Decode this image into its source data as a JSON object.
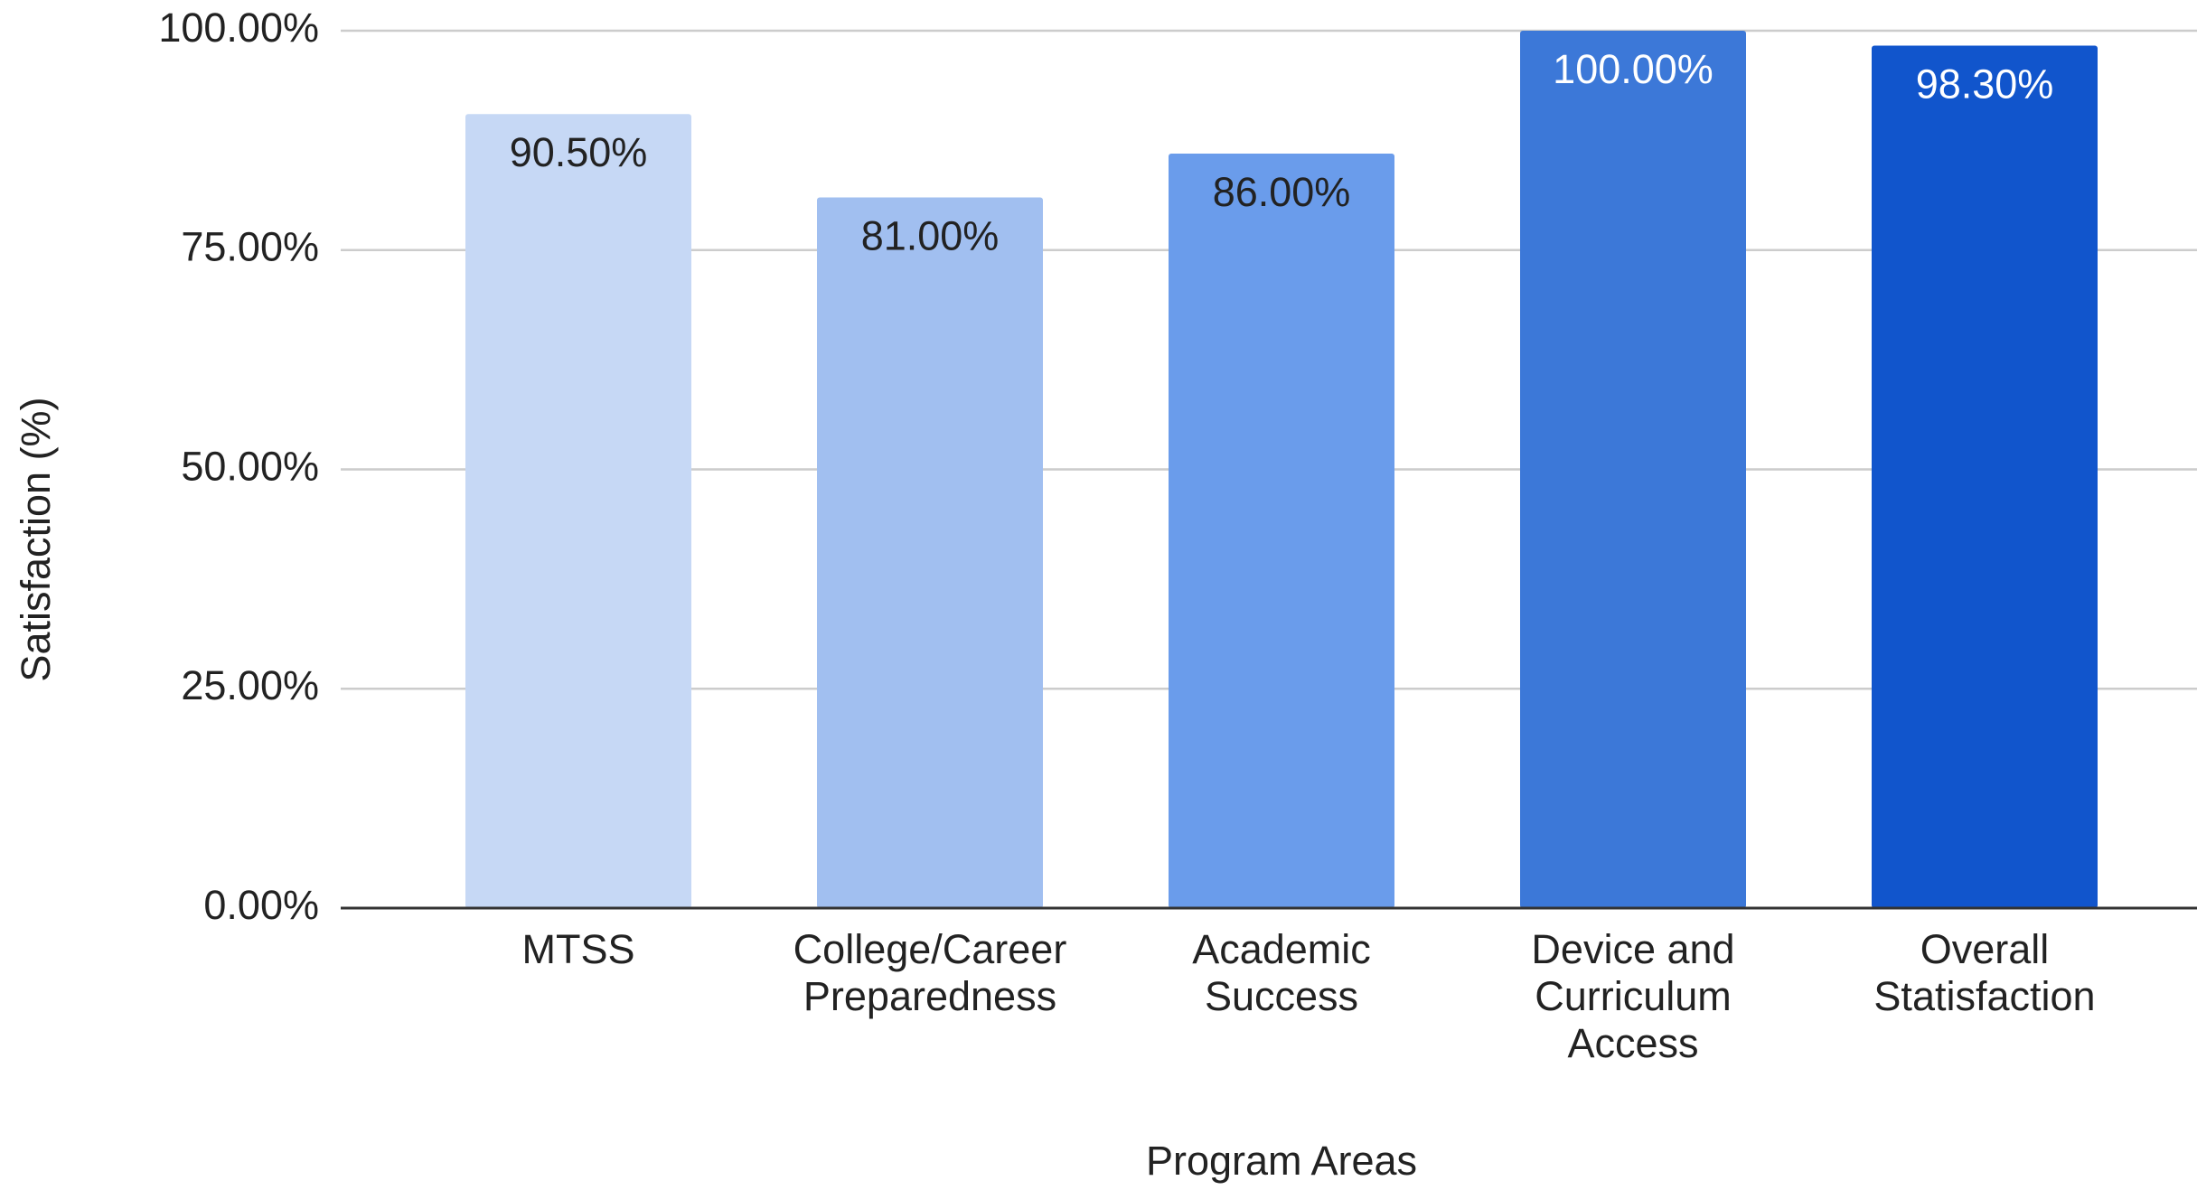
{
  "chart_data": {
    "type": "bar",
    "x_label": "Program Areas",
    "y_label": "Satisfaction (%)",
    "categories": [
      [
        "MTSS"
      ],
      [
        "College/Career",
        "Preparedness"
      ],
      [
        "Academic",
        "Success"
      ],
      [
        "Device and",
        "Curriculum",
        "Access"
      ],
      [
        "Overall",
        "Statisfaction"
      ]
    ],
    "values": [
      90.5,
      81,
      86,
      100,
      98.3
    ],
    "value_labels": [
      "90.50%",
      "81.00%",
      "86.00%",
      "100.00%",
      "98.30%"
    ],
    "colors": [
      "#c6d8f5",
      "#a1bff0",
      "#6a9ceb",
      "#3c78d8",
      "#1155cc"
    ],
    "ylim": [
      0,
      100
    ],
    "yticks": [
      {
        "value": 0,
        "label": "0.00%"
      },
      {
        "value": 25,
        "label": "25.00%"
      },
      {
        "value": 50,
        "label": "50.00%"
      },
      {
        "value": 75,
        "label": "75.00%"
      },
      {
        "value": 100,
        "label": "100.00%"
      }
    ],
    "grid": true
  }
}
